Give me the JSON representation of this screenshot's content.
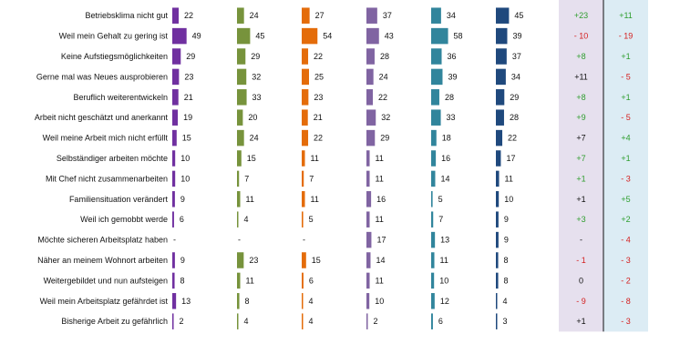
{
  "chart_data": {
    "type": "bar",
    "orientation": "horizontal",
    "categories": [
      "Betriebsklima nicht gut",
      "Weil mein Gehalt zu gering ist",
      "Keine Aufstiegsmöglichkeiten",
      "Gerne mal was Neues ausprobieren",
      "Beruflich weiterentwickeln",
      "Arbeit nicht geschätzt und anerkannt",
      "Weil meine Arbeit mich nicht erfüllt",
      "Selbständiger arbeiten möchte",
      "Mit Chef nicht zusammenarbeiten",
      "Familiensituation verändert",
      "Weil ich gemobbt werde",
      "Möchte sicheren Arbeitsplatz haben",
      "Näher an meinem Wohnort arbeiten",
      "Weitergebildet und nun aufsteigen",
      "Weil mein Arbeitsplatz gefährdet ist",
      "Bisherige Arbeit zu gefährlich"
    ],
    "series": [
      {
        "color": "#7030a0",
        "values": [
          22,
          49,
          29,
          23,
          21,
          19,
          15,
          10,
          10,
          9,
          6,
          null,
          9,
          8,
          13,
          2
        ]
      },
      {
        "color": "#77933c",
        "values": [
          24,
          45,
          29,
          32,
          33,
          20,
          24,
          15,
          7,
          11,
          4,
          null,
          23,
          11,
          8,
          4
        ]
      },
      {
        "color": "#e46c0a",
        "values": [
          27,
          54,
          22,
          25,
          23,
          21,
          22,
          11,
          7,
          11,
          5,
          null,
          15,
          6,
          4,
          4
        ]
      },
      {
        "color": "#8064a2",
        "values": [
          37,
          43,
          28,
          24,
          22,
          32,
          29,
          11,
          11,
          16,
          11,
          17,
          14,
          11,
          10,
          2
        ]
      },
      {
        "color": "#31859c",
        "values": [
          34,
          58,
          36,
          39,
          28,
          33,
          18,
          16,
          14,
          5,
          7,
          13,
          11,
          10,
          12,
          6
        ]
      },
      {
        "color": "#1f497d",
        "values": [
          45,
          39,
          37,
          34,
          29,
          28,
          22,
          17,
          11,
          10,
          9,
          9,
          8,
          8,
          4,
          3
        ]
      }
    ],
    "diff_columns": [
      {
        "values": [
          "+23",
          "- 10",
          "+8",
          "+11",
          "+8",
          "+9",
          "+7",
          "+7",
          "+1",
          "+1",
          "+3",
          "-",
          "- 1",
          "0",
          "- 9",
          "+1"
        ]
      },
      {
        "values": [
          "+11",
          "- 19",
          "+1",
          "- 5",
          "+1",
          "- 5",
          "+4",
          "+1",
          "- 3",
          "+5",
          "+2",
          "- 4",
          "- 3",
          "- 2",
          "- 8",
          "- 3"
        ]
      }
    ],
    "diff_colors": {
      "positive": "#2e9e2e",
      "negative": "#d42020",
      "neutral": "#111111"
    },
    "panel_colors": {
      "left": "#e6e0ee",
      "right": "#dcecf4"
    },
    "missing_label": "-",
    "grid": false,
    "legend": false
  }
}
